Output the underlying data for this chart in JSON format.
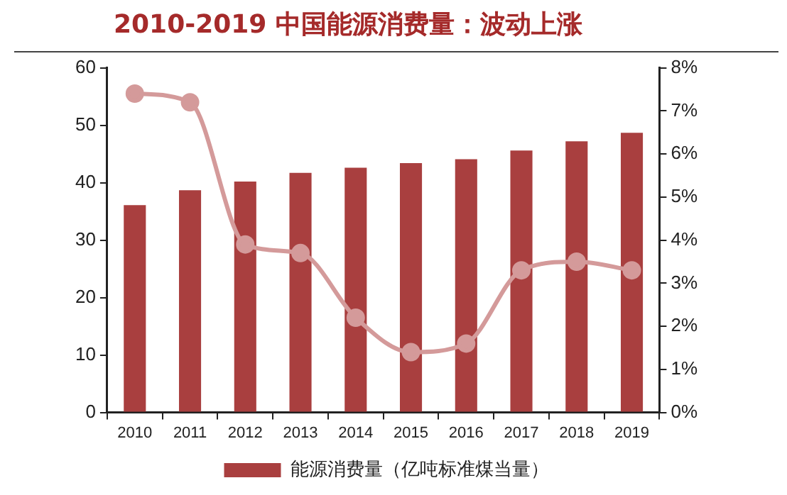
{
  "chart_data": {
    "type": "bar",
    "title": "2010-2019 中国能源消费量：波动上涨",
    "categories": [
      "2010",
      "2011",
      "2012",
      "2013",
      "2014",
      "2015",
      "2016",
      "2017",
      "2018",
      "2019"
    ],
    "series": [
      {
        "name": "能源消费量（亿吨标准煤当量）",
        "color": "#a93f3f",
        "values": [
          36.1,
          38.7,
          40.2,
          41.7,
          42.6,
          43.4,
          44.1,
          45.6,
          47.2,
          48.7
        ]
      },
      {
        "type": "line",
        "axis": "y2",
        "color": "#d49a9a",
        "values": [
          7.4,
          7.2,
          3.9,
          3.7,
          2.2,
          1.4,
          1.6,
          3.3,
          3.5,
          3.3
        ]
      }
    ],
    "ylim": [
      0,
      60
    ],
    "yticks": [
      0,
      10,
      20,
      30,
      40,
      50,
      60
    ],
    "y2lim": [
      0,
      8
    ],
    "y2ticks": [
      {
        "value": 0,
        "label": "0%"
      },
      {
        "value": 1,
        "label": "1%"
      },
      {
        "value": 2,
        "label": "2%"
      },
      {
        "value": 3,
        "label": "3%"
      },
      {
        "value": 4,
        "label": "4%"
      },
      {
        "value": 5,
        "label": "5%"
      },
      {
        "value": 6,
        "label": "6%"
      },
      {
        "value": 7,
        "label": "7%"
      },
      {
        "value": 8,
        "label": "8%"
      }
    ],
    "marker": "circle",
    "legend": "bottom"
  }
}
